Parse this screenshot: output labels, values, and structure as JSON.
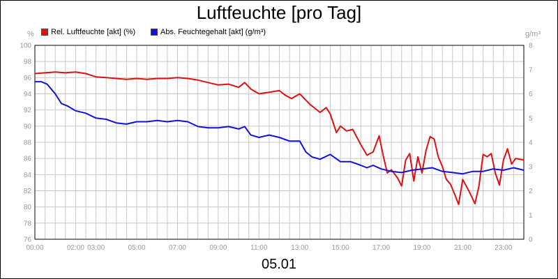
{
  "chart_data": {
    "type": "line",
    "title": "Luftfeuchte [pro Tag]",
    "date": "05.01",
    "left_unit": "%",
    "right_unit": "g/m³",
    "left_ylim": [
      76,
      100
    ],
    "left_ticks": [
      76,
      78,
      80,
      82,
      84,
      86,
      88,
      90,
      92,
      94,
      96,
      98,
      100
    ],
    "right_ylim": [
      0,
      8
    ],
    "right_ticks": [
      0,
      1,
      2,
      3,
      4,
      5,
      6,
      7,
      8
    ],
    "xlim": [
      0,
      24
    ],
    "x_ticks": [
      {
        "x": 0,
        "label": "00:00"
      },
      {
        "x": 2,
        "label": "02:00"
      },
      {
        "x": 3,
        "label": "03:00"
      },
      {
        "x": 5,
        "label": "05:00"
      },
      {
        "x": 7,
        "label": "07:00"
      },
      {
        "x": 9,
        "label": "09:00"
      },
      {
        "x": 11,
        "label": "11:00"
      },
      {
        "x": 13,
        "label": "13:00"
      },
      {
        "x": 15,
        "label": "15:00"
      },
      {
        "x": 17,
        "label": "17:00"
      },
      {
        "x": 19,
        "label": "19:00"
      },
      {
        "x": 21,
        "label": "21:00"
      },
      {
        "x": 23,
        "label": "23:00"
      }
    ],
    "grid": true,
    "legend_position": "top-left",
    "series": [
      {
        "name": "Rel. Luftfeuchte [akt] (%)",
        "color": "#e01010",
        "axis": "left",
        "points": [
          [
            0,
            96.5
          ],
          [
            0.5,
            96.6
          ],
          [
            1,
            96.7
          ],
          [
            1.5,
            96.6
          ],
          [
            2,
            96.7
          ],
          [
            2.5,
            96.5
          ],
          [
            3,
            96.1
          ],
          [
            3.5,
            96.0
          ],
          [
            4,
            95.9
          ],
          [
            4.5,
            95.8
          ],
          [
            5,
            95.9
          ],
          [
            5.5,
            95.8
          ],
          [
            6,
            95.9
          ],
          [
            6.5,
            95.9
          ],
          [
            7,
            96.0
          ],
          [
            7.5,
            95.9
          ],
          [
            8,
            95.7
          ],
          [
            8.5,
            95.4
          ],
          [
            9,
            95.1
          ],
          [
            9.5,
            95.2
          ],
          [
            10,
            94.8
          ],
          [
            10.3,
            95.4
          ],
          [
            10.6,
            94.6
          ],
          [
            11,
            94.0
          ],
          [
            11.5,
            94.2
          ],
          [
            12,
            94.4
          ],
          [
            12.3,
            93.8
          ],
          [
            12.6,
            93.4
          ],
          [
            13,
            94.0
          ],
          [
            13.5,
            92.7
          ],
          [
            14,
            91.7
          ],
          [
            14.3,
            92.3
          ],
          [
            14.5,
            91.5
          ],
          [
            14.8,
            89.2
          ],
          [
            15,
            90.0
          ],
          [
            15.3,
            89.4
          ],
          [
            15.6,
            89.6
          ],
          [
            16,
            87.7
          ],
          [
            16.3,
            86.4
          ],
          [
            16.6,
            86.8
          ],
          [
            16.9,
            88.8
          ],
          [
            17.1,
            86.3
          ],
          [
            17.3,
            84.2
          ],
          [
            17.5,
            84.6
          ],
          [
            17.8,
            83.6
          ],
          [
            18,
            82.6
          ],
          [
            18.2,
            85.8
          ],
          [
            18.4,
            86.6
          ],
          [
            18.6,
            83.2
          ],
          [
            18.8,
            86.2
          ],
          [
            19,
            84.2
          ],
          [
            19.2,
            87.0
          ],
          [
            19.4,
            88.7
          ],
          [
            19.6,
            88.4
          ],
          [
            19.8,
            86.2
          ],
          [
            20,
            85.0
          ],
          [
            20.2,
            83.4
          ],
          [
            20.4,
            82.8
          ],
          [
            20.6,
            81.6
          ],
          [
            20.8,
            80.3
          ],
          [
            21,
            83.4
          ],
          [
            21.3,
            82.0
          ],
          [
            21.6,
            80.4
          ],
          [
            21.8,
            82.6
          ],
          [
            22,
            86.5
          ],
          [
            22.2,
            86.2
          ],
          [
            22.4,
            86.6
          ],
          [
            22.6,
            84.2
          ],
          [
            22.8,
            82.7
          ],
          [
            23,
            85.8
          ],
          [
            23.2,
            87.2
          ],
          [
            23.4,
            85.3
          ],
          [
            23.6,
            86.0
          ],
          [
            24,
            85.8
          ]
        ]
      },
      {
        "name": "Abs. Feuchtegehalt [akt] (g/m³)",
        "color": "#1010e0",
        "axis": "right",
        "points": [
          [
            0,
            6.5
          ],
          [
            0.3,
            6.5
          ],
          [
            0.6,
            6.4
          ],
          [
            1,
            6.0
          ],
          [
            1.3,
            5.6
          ],
          [
            1.6,
            5.5
          ],
          [
            2,
            5.3
          ],
          [
            2.5,
            5.2
          ],
          [
            3,
            5.0
          ],
          [
            3.5,
            4.95
          ],
          [
            4,
            4.8
          ],
          [
            4.5,
            4.75
          ],
          [
            5,
            4.85
          ],
          [
            5.5,
            4.85
          ],
          [
            6,
            4.9
          ],
          [
            6.5,
            4.85
          ],
          [
            7,
            4.9
          ],
          [
            7.5,
            4.85
          ],
          [
            8,
            4.65
          ],
          [
            8.5,
            4.6
          ],
          [
            9,
            4.6
          ],
          [
            9.5,
            4.65
          ],
          [
            10,
            4.55
          ],
          [
            10.3,
            4.65
          ],
          [
            10.6,
            4.3
          ],
          [
            11,
            4.2
          ],
          [
            11.5,
            4.3
          ],
          [
            12,
            4.2
          ],
          [
            12.5,
            4.05
          ],
          [
            13,
            4.05
          ],
          [
            13.3,
            3.6
          ],
          [
            13.6,
            3.4
          ],
          [
            14,
            3.3
          ],
          [
            14.5,
            3.5
          ],
          [
            15,
            3.2
          ],
          [
            15.5,
            3.2
          ],
          [
            16,
            3.05
          ],
          [
            16.3,
            2.95
          ],
          [
            16.6,
            3.05
          ],
          [
            17,
            2.9
          ],
          [
            17.5,
            2.8
          ],
          [
            18,
            2.75
          ],
          [
            18.5,
            2.85
          ],
          [
            19,
            2.9
          ],
          [
            19.5,
            2.95
          ],
          [
            20,
            2.8
          ],
          [
            20.5,
            2.75
          ],
          [
            21,
            2.7
          ],
          [
            21.5,
            2.8
          ],
          [
            22,
            2.8
          ],
          [
            22.5,
            2.9
          ],
          [
            23,
            2.85
          ],
          [
            23.5,
            2.95
          ],
          [
            24,
            2.85
          ]
        ]
      }
    ]
  }
}
